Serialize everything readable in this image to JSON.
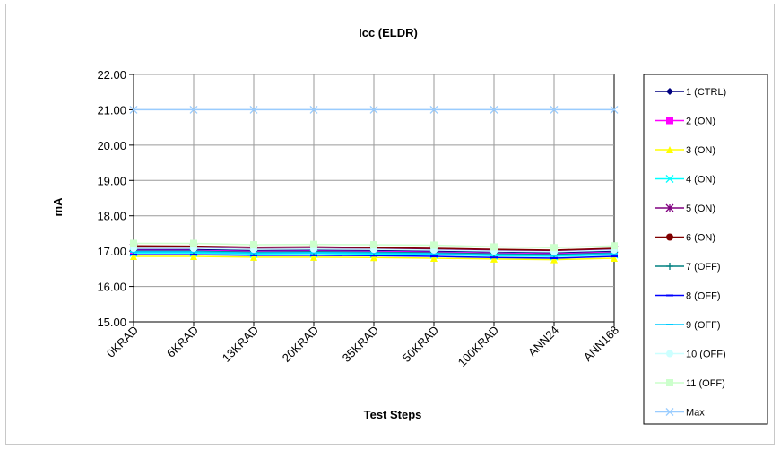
{
  "chart_data": {
    "type": "line",
    "title": "Icc (ELDR)",
    "xlabel": "Test Steps",
    "ylabel": "mA",
    "ylim": [
      15.0,
      22.0
    ],
    "yticks": [
      "15.00",
      "16.00",
      "17.00",
      "18.00",
      "19.00",
      "20.00",
      "21.00",
      "22.00"
    ],
    "categories": [
      "0KRAD",
      "6KRAD",
      "13KRAD",
      "20KRAD",
      "35KRAD",
      "50KRAD",
      "100KRAD",
      "ANN24",
      "ANN168"
    ],
    "grid": true,
    "legend_position": "right",
    "series": [
      {
        "name": "1 (CTRL)",
        "color": "#000080",
        "marker": "diamond",
        "values": [
          17.05,
          17.05,
          17.02,
          17.03,
          17.02,
          17.0,
          16.98,
          16.95,
          17.0
        ]
      },
      {
        "name": "2 (ON)",
        "color": "#ff00ff",
        "marker": "square",
        "values": [
          17.02,
          17.02,
          16.99,
          17.0,
          16.99,
          16.97,
          16.94,
          16.92,
          16.97
        ]
      },
      {
        "name": "3 (ON)",
        "color": "#ffff00",
        "marker": "triangle",
        "values": [
          16.85,
          16.85,
          16.83,
          16.83,
          16.82,
          16.8,
          16.78,
          16.76,
          16.8
        ]
      },
      {
        "name": "4 (ON)",
        "color": "#00ffff",
        "marker": "x",
        "values": [
          16.95,
          16.95,
          16.92,
          16.93,
          16.92,
          16.9,
          16.87,
          16.85,
          16.9
        ]
      },
      {
        "name": "5 (ON)",
        "color": "#800080",
        "marker": "star",
        "values": [
          17.1,
          17.1,
          17.07,
          17.08,
          17.07,
          17.05,
          17.02,
          17.0,
          17.05
        ]
      },
      {
        "name": "6 (ON)",
        "color": "#800000",
        "marker": "circle",
        "values": [
          17.15,
          17.14,
          17.11,
          17.12,
          17.1,
          17.08,
          17.05,
          17.03,
          17.08
        ]
      },
      {
        "name": "7 (OFF)",
        "color": "#008080",
        "marker": "plus",
        "values": [
          17.0,
          17.0,
          16.97,
          16.98,
          16.97,
          16.95,
          16.92,
          16.9,
          16.95
        ]
      },
      {
        "name": "8 (OFF)",
        "color": "#0000ff",
        "marker": "dash",
        "values": [
          16.9,
          16.9,
          16.88,
          16.88,
          16.87,
          16.85,
          16.82,
          16.8,
          16.85
        ]
      },
      {
        "name": "9 (OFF)",
        "color": "#00ccff",
        "marker": "dash",
        "values": [
          16.98,
          16.98,
          16.95,
          16.96,
          16.95,
          16.93,
          16.9,
          16.88,
          16.93
        ]
      },
      {
        "name": "10 (OFF)",
        "color": "#ccffff",
        "marker": "circle",
        "values": [
          17.08,
          17.08,
          17.05,
          17.06,
          17.05,
          17.03,
          17.0,
          16.98,
          17.03
        ]
      },
      {
        "name": "11 (OFF)",
        "color": "#ccffcc",
        "marker": "square",
        "values": [
          17.22,
          17.22,
          17.18,
          17.19,
          17.18,
          17.17,
          17.12,
          17.1,
          17.15
        ]
      },
      {
        "name": "Max",
        "color": "#99ccff",
        "marker": "x",
        "values": [
          21.0,
          21.0,
          21.0,
          21.0,
          21.0,
          21.0,
          21.0,
          21.0,
          21.0
        ]
      }
    ]
  }
}
